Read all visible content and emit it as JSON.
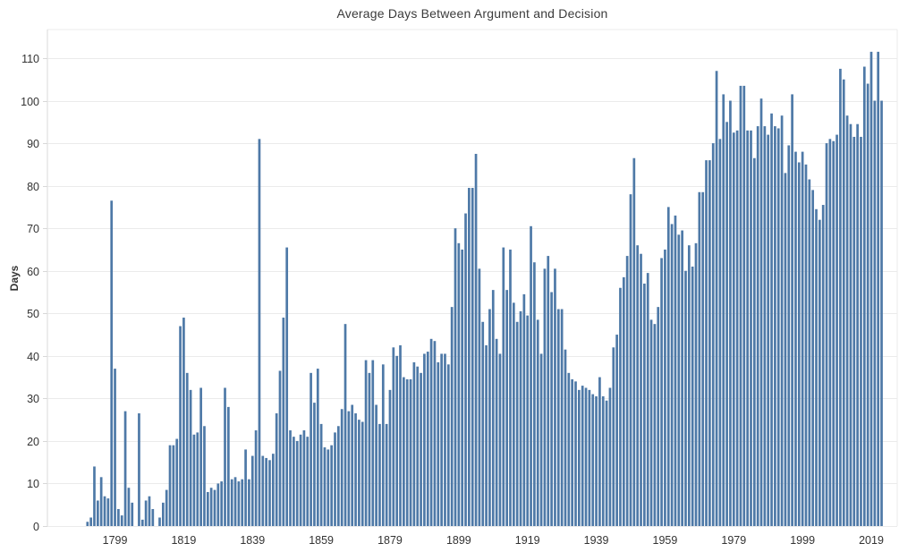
{
  "title": "Average Days Between Argument and Decision",
  "colors": {
    "bar": "#4e79a7",
    "background": "#ffffff",
    "gridline": "#ebebeb",
    "axis_ruler": "#d8d8d8",
    "tick_text": "#333333",
    "title_text": "#3b3b3b"
  },
  "chart_data": {
    "type": "bar",
    "title": "Average Days Between Argument and Decision",
    "xlabel": "",
    "ylabel": "Days",
    "legend": "none",
    "grid": "horizontal",
    "ylim": [
      0,
      117
    ],
    "y_ticks": [
      0,
      10,
      20,
      30,
      40,
      50,
      60,
      70,
      80,
      90,
      100,
      110
    ],
    "x_tick_labels": [
      "1799",
      "1819",
      "1839",
      "1859",
      "1879",
      "1899",
      "1919",
      "1939",
      "1959",
      "1979",
      "1999",
      "2019"
    ],
    "x_tick_years": [
      1799,
      1819,
      1839,
      1859,
      1879,
      1899,
      1919,
      1939,
      1959,
      1979,
      1999,
      2019
    ],
    "start_year": 1791,
    "end_year": 2022,
    "series_name": "Average days between argument and decision",
    "values": [
      1,
      2,
      14,
      6,
      11.5,
      7,
      6.5,
      76.5,
      37,
      4,
      2.5,
      27,
      9,
      5.5,
      null,
      26.5,
      1.5,
      6,
      7,
      4,
      null,
      2,
      5.5,
      8.5,
      19,
      19,
      20.5,
      47,
      49,
      36,
      32,
      21.5,
      22,
      32.5,
      23.5,
      8,
      9,
      8.5,
      10,
      10.5,
      32.5,
      28,
      11,
      11.5,
      10.5,
      11,
      18,
      11,
      16.5,
      22.5,
      91,
      16.5,
      16,
      15.5,
      17,
      26.5,
      36.5,
      49,
      65.5,
      22.5,
      21,
      20,
      21.5,
      22.5,
      21,
      36,
      29,
      37,
      24,
      18.5,
      18,
      19,
      22,
      23.5,
      27.5,
      47.5,
      27,
      28.5,
      26.5,
      25,
      24.5,
      39,
      36,
      39,
      28.5,
      24,
      38,
      24,
      32,
      42,
      40,
      42.5,
      35,
      34.5,
      34.5,
      38.5,
      37.5,
      36,
      40.5,
      41,
      44,
      43.5,
      38.5,
      40.5,
      40.5,
      38,
      51.5,
      70,
      66.5,
      65,
      73.5,
      79.5,
      79.5,
      87.5,
      60.5,
      48,
      42.5,
      51,
      55.5,
      44,
      40.5,
      65.5,
      55.5,
      65,
      52.5,
      48,
      50.5,
      54.5,
      49.5,
      70.5,
      62,
      48.5,
      40.5,
      60.5,
      63.5,
      55,
      60.5,
      51,
      51,
      41.5,
      36,
      34.5,
      34,
      32,
      33,
      32.5,
      32,
      31,
      30.5,
      35,
      30.5,
      29.5,
      32.5,
      42,
      45,
      56,
      58.5,
      63.5,
      78,
      86.5,
      66,
      64,
      57,
      59.5,
      48.5,
      47.5,
      51.5,
      63,
      65,
      75,
      71,
      73,
      68.5,
      69.5,
      60,
      66,
      61,
      66.5,
      78.5,
      78.5,
      86,
      86,
      90,
      107,
      91,
      101.5,
      95,
      100,
      92.5,
      93,
      103.5,
      103.5,
      93,
      93,
      86.5,
      94,
      100.5,
      94,
      92,
      97,
      94,
      93.5,
      96.5,
      83,
      89.5,
      101.5,
      88,
      85.5,
      88,
      85,
      81.5,
      79,
      74.5,
      72,
      75.5,
      90,
      91,
      90.5,
      92,
      107.5,
      105,
      96.5,
      94.5,
      91.5,
      94.5,
      91.5,
      108,
      104,
      111.5,
      100,
      111.5,
      100
    ]
  }
}
